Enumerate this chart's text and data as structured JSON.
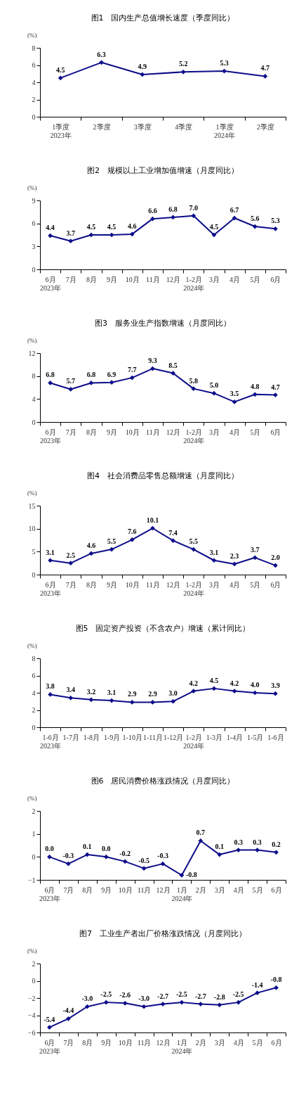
{
  "chart_data": [
    {
      "type": "line",
      "title": "图1　国内生产总值增长速度（季度同比）",
      "ylabel": "(%)",
      "categories": [
        "1季度\n2023年",
        "2季度",
        "3季度",
        "4季度",
        "1季度\n2024年",
        "2季度"
      ],
      "series": [
        {
          "color": "#0d0d8a",
          "values": [
            4.5,
            6.3,
            4.9,
            5.2,
            5.3,
            4.7
          ],
          "value_labels": [
            "4.5",
            "6.3",
            "4.9",
            "5.2",
            "5.3",
            "4.7"
          ]
        }
      ],
      "ylim": [
        0,
        8
      ],
      "yticks": [
        0,
        2,
        4,
        6,
        8
      ],
      "marker": "diamond",
      "line_style": "solid"
    },
    {
      "type": "line",
      "title": "图2　规模以上工业增加值增速（月度同比）",
      "ylabel": "(%)",
      "categories": [
        "6月\n2023年",
        "7月",
        "8月",
        "9月",
        "10月",
        "11月",
        "12月",
        "1-2月\n2024年",
        "3月",
        "4月",
        "5月",
        "6月"
      ],
      "series": [
        {
          "color": "#0d0d8a",
          "values": [
            4.4,
            3.7,
            4.5,
            4.5,
            4.6,
            6.6,
            6.8,
            7.0,
            4.5,
            6.7,
            5.6,
            5.3
          ],
          "value_labels": [
            "4.4",
            "3.7",
            "4.5",
            "4.5",
            "4.6",
            "6.6",
            "6.8",
            "7.0",
            "4.5",
            "6.7",
            "5.6",
            "5.3"
          ]
        }
      ],
      "ylim": [
        0,
        9
      ],
      "yticks": [
        0,
        3,
        6,
        9
      ],
      "marker": "diamond",
      "line_style": "solid"
    },
    {
      "type": "line",
      "title": "图3　服务业生产指数增速（月度同比）",
      "ylabel": "(%)",
      "categories": [
        "6月\n2023年",
        "7月",
        "8月",
        "9月",
        "10月",
        "11月",
        "12月",
        "1-2月\n2024年",
        "3月",
        "4月",
        "5月",
        "6月"
      ],
      "series": [
        {
          "color": "#0d0d8a",
          "values": [
            6.8,
            5.7,
            6.8,
            6.9,
            7.7,
            9.3,
            8.5,
            5.8,
            5.0,
            3.5,
            4.8,
            4.7
          ],
          "value_labels": [
            "6.8",
            "5.7",
            "6.8",
            "6.9",
            "7.7",
            "9.3",
            "8.5",
            "5.8",
            "5.0",
            "3.5",
            "4.8",
            "4.7"
          ]
        }
      ],
      "ylim": [
        0,
        12
      ],
      "yticks": [
        0,
        4,
        8,
        12
      ],
      "marker": "diamond",
      "line_style": "solid"
    },
    {
      "type": "line",
      "title": "图4　社会消费品零售总额增速（月度同比）",
      "ylabel": "(%)",
      "categories": [
        "6月\n2023年",
        "7月",
        "8月",
        "9月",
        "10月",
        "11月",
        "12月",
        "1-2月\n2024年",
        "3月",
        "4月",
        "5月",
        "6月"
      ],
      "series": [
        {
          "color": "#0d0d8a",
          "values": [
            3.1,
            2.5,
            4.6,
            5.5,
            7.6,
            10.1,
            7.4,
            5.5,
            3.1,
            2.3,
            3.7,
            2.0
          ],
          "value_labels": [
            "3.1",
            "2.5",
            "4.6",
            "5.5",
            "7.6",
            "10.1",
            "7.4",
            "5.5",
            "3.1",
            "2.3",
            "3.7",
            "2.0"
          ]
        }
      ],
      "ylim": [
        0,
        15
      ],
      "yticks": [
        0,
        5,
        10,
        15
      ],
      "marker": "diamond",
      "line_style": "solid"
    },
    {
      "type": "line",
      "title": "图5　固定资产投资（不含农户）增速（累计同比）",
      "ylabel": "(%)",
      "categories": [
        "1-6月\n2023年",
        "1-7月",
        "1-8月",
        "1-9月",
        "1-10月",
        "1-11月",
        "1-12月",
        "1-2月\n2024年",
        "1-3月",
        "1-4月",
        "1-5月",
        "1-6月"
      ],
      "series": [
        {
          "color": "#0d0d8a",
          "values": [
            3.8,
            3.4,
            3.2,
            3.1,
            2.9,
            2.9,
            3.0,
            4.2,
            4.5,
            4.2,
            4.0,
            3.9
          ],
          "value_labels": [
            "3.8",
            "3.4",
            "3.2",
            "3.1",
            "2.9",
            "2.9",
            "3.0",
            "4.2",
            "4.5",
            "4.2",
            "4.0",
            "3.9"
          ]
        }
      ],
      "ylim": [
        0,
        8
      ],
      "yticks": [
        0,
        2,
        4,
        6,
        8
      ],
      "marker": "diamond",
      "line_style": "solid"
    },
    {
      "type": "line",
      "title": "图6　居民消费价格涨跌情况（月度同比）",
      "ylabel": "(%)",
      "categories": [
        "6月\n2023年",
        "7月",
        "8月",
        "9月",
        "10月",
        "11月",
        "12月",
        "1月\n2024年",
        "2月",
        "3月",
        "4月",
        "5月",
        "6月"
      ],
      "series": [
        {
          "color": "#0d0d8a",
          "values": [
            0.0,
            -0.3,
            0.1,
            0.0,
            -0.2,
            -0.5,
            -0.3,
            -0.8,
            0.7,
            0.1,
            0.3,
            0.3,
            0.2
          ],
          "value_labels": [
            "0.0",
            "-0.3",
            "0.1",
            "0.0",
            "-0.2",
            "-0.5",
            "-0.3",
            "-0.8",
            "0.7",
            "0.1",
            "0.3",
            "0.3",
            "0.2"
          ]
        }
      ],
      "ylim": [
        -1,
        2
      ],
      "yticks": [
        -1,
        0,
        1,
        2
      ],
      "marker": "diamond",
      "line_style": "solid"
    },
    {
      "type": "line",
      "title": "图7　工业生产者出厂价格涨跌情况（月度同比）",
      "ylabel": "(%)",
      "categories": [
        "6月\n2023年",
        "7月",
        "8月",
        "9月",
        "10月",
        "11月",
        "12月",
        "1月\n2024年",
        "2月",
        "3月",
        "4月",
        "5月",
        "6月"
      ],
      "series": [
        {
          "color": "#0d0d8a",
          "values": [
            -5.4,
            -4.4,
            -3.0,
            -2.5,
            -2.6,
            -3.0,
            -2.7,
            -2.5,
            -2.7,
            -2.8,
            -2.5,
            -1.4,
            -0.8
          ],
          "value_labels": [
            "-5.4",
            "-4.4",
            "-3.0",
            "-2.5",
            "-2.6",
            "-3.0",
            "-2.7",
            "-2.5",
            "-2.7",
            "-2.8",
            "-2.5",
            "-1.4",
            "-0.8"
          ]
        }
      ],
      "ylim": [
        -6,
        2
      ],
      "yticks": [
        -6,
        -4,
        -2,
        0,
        2
      ],
      "marker": "diamond",
      "line_style": "solid"
    }
  ]
}
